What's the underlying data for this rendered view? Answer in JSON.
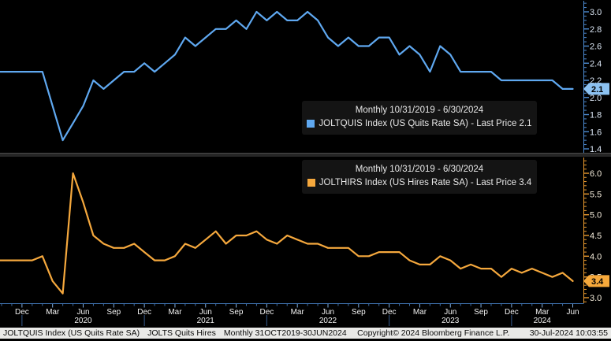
{
  "chart_data": [
    {
      "type": "line",
      "panel": "top",
      "name_slug": "quits-rate",
      "title": "Monthly 10/31/2019 - 6/30/2024",
      "legend": "JOLTQUIS Index (US Quits Rate SA) - Last Price 2.1",
      "ticker": "JOLTQUIS Index",
      "series_name": "US Quits Rate SA",
      "frequency": "Monthly",
      "x_start": "Oct 2019",
      "x_end": "Jun 2024",
      "last_price": "2.1",
      "color": "#5FA8F0",
      "tag_color": "#8CC2F2",
      "axis_color": "#4C89CF",
      "label_color": "#DCE7F5",
      "ylim": [
        1.4,
        3.0
      ],
      "y_major_ticks": [
        3.0,
        2.8,
        2.6,
        2.4,
        2.2,
        2.0,
        1.8,
        1.6,
        1.4
      ],
      "y_minor_step": 0.05,
      "values": [
        2.3,
        2.3,
        2.3,
        2.3,
        2.3,
        1.9,
        1.5,
        1.7,
        1.9,
        2.2,
        2.1,
        2.2,
        2.3,
        2.3,
        2.4,
        2.3,
        2.4,
        2.5,
        2.7,
        2.6,
        2.7,
        2.8,
        2.8,
        2.9,
        2.8,
        3.0,
        2.9,
        3.0,
        2.9,
        2.9,
        3.0,
        2.9,
        2.7,
        2.6,
        2.7,
        2.6,
        2.6,
        2.7,
        2.7,
        2.5,
        2.6,
        2.5,
        2.3,
        2.6,
        2.5,
        2.3,
        2.3,
        2.3,
        2.3,
        2.2,
        2.2,
        2.2,
        2.2,
        2.2,
        2.2,
        2.1,
        2.1
      ]
    },
    {
      "type": "line",
      "panel": "bottom",
      "name_slug": "hires-rate",
      "title": "Monthly 10/31/2019 - 6/30/2024",
      "legend": "JOLTHIRS Index (US Hires Rate SA) - Last Price 3.4",
      "ticker": "JOLTHIRS Index",
      "series_name": "US Hires Rate SA",
      "frequency": "Monthly",
      "x_start": "Oct 2019",
      "x_end": "Jun 2024",
      "last_price": "3.4",
      "color": "#F5A83D",
      "tag_color": "#F7A93B",
      "axis_color": "#E8992F",
      "label_color": "#F5EDDC",
      "ylim": [
        3.0,
        6.0
      ],
      "y_major_ticks": [
        6.0,
        5.5,
        5.0,
        4.5,
        4.0,
        3.5,
        3.0
      ],
      "y_minor_step": 0.1,
      "values": [
        3.9,
        3.9,
        3.9,
        3.9,
        4.0,
        3.4,
        3.1,
        6.0,
        5.3,
        4.5,
        4.3,
        4.2,
        4.2,
        4.3,
        4.1,
        3.9,
        3.9,
        4.0,
        4.3,
        4.2,
        4.4,
        4.6,
        4.3,
        4.5,
        4.5,
        4.6,
        4.4,
        4.3,
        4.5,
        4.4,
        4.3,
        4.3,
        4.2,
        4.2,
        4.2,
        4.0,
        4.0,
        4.1,
        4.1,
        4.1,
        3.9,
        3.8,
        3.8,
        4.0,
        3.9,
        3.7,
        3.8,
        3.7,
        3.7,
        3.5,
        3.7,
        3.6,
        3.7,
        3.6,
        3.5,
        3.6,
        3.4
      ]
    }
  ],
  "x_axis": {
    "month_tick_labels": [
      "Dec",
      "Mar",
      "Jun",
      "Sep",
      "Dec",
      "Mar",
      "Jun",
      "Sep",
      "Dec",
      "Mar",
      "Jun",
      "Sep",
      "Dec",
      "Mar",
      "Jun",
      "Sep",
      "Dec",
      "Mar",
      "Jun"
    ],
    "year_separator_months": [
      2,
      14,
      26,
      38,
      50
    ],
    "year_labels": [
      {
        "label": "2020",
        "center_month": 8
      },
      {
        "label": "2021",
        "center_month": 20
      },
      {
        "label": "2022",
        "center_month": 32
      },
      {
        "label": "2023",
        "center_month": 44
      },
      {
        "label": "2024",
        "center_month": 53
      }
    ]
  },
  "status_bar": {
    "ticker": "JOLTQUIS Index (US Quits Rate SA)",
    "chart_title": "JOLTS Quits Hires",
    "range": "Monthly 31OCT2019-30JUN2024",
    "copyright": "Copyright© 2024 Bloomberg Finance L.P.",
    "datetime": "30-Jul-2024 10:03:55"
  }
}
